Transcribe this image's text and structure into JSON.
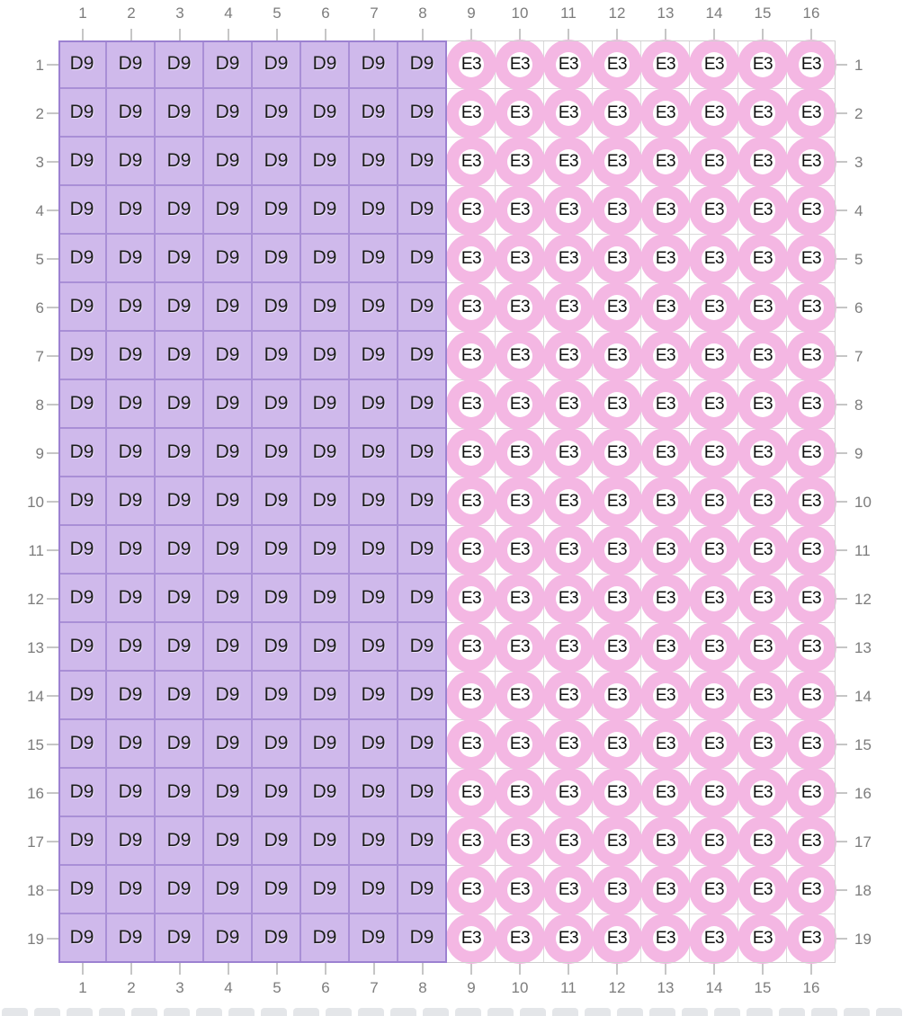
{
  "grid": {
    "rows": 19,
    "cols": 16,
    "col_labels": [
      "1",
      "2",
      "3",
      "4",
      "5",
      "6",
      "7",
      "8",
      "9",
      "10",
      "11",
      "12",
      "13",
      "14",
      "15",
      "16"
    ],
    "row_labels": [
      "1",
      "2",
      "3",
      "4",
      "5",
      "6",
      "7",
      "8",
      "9",
      "10",
      "11",
      "12",
      "13",
      "14",
      "15",
      "16",
      "17",
      "18",
      "19"
    ],
    "regions": [
      {
        "name": "square-bead-region",
        "shape": "square",
        "cols": 8,
        "code": "D9",
        "fill": "#cfb9eb",
        "line": "#a98fd6",
        "outer": "#9c81d1",
        "text_color": "#1b1b1b"
      },
      {
        "name": "round-bead-region",
        "shape": "circle",
        "cols": 8,
        "code": "E3",
        "ring": "#f4b7e3",
        "hole": "#ffffff",
        "line": "#d9d9d9",
        "outer": "#cfcfcf",
        "text_color": "#101010"
      }
    ]
  },
  "colors": {
    "background": "#ffffff",
    "axis_label": "#7c7c7c",
    "tick": "#c6c6c6",
    "palette_chip": "#e4e6e9"
  },
  "bottom_palette_strip": {
    "chip_count": 28
  }
}
